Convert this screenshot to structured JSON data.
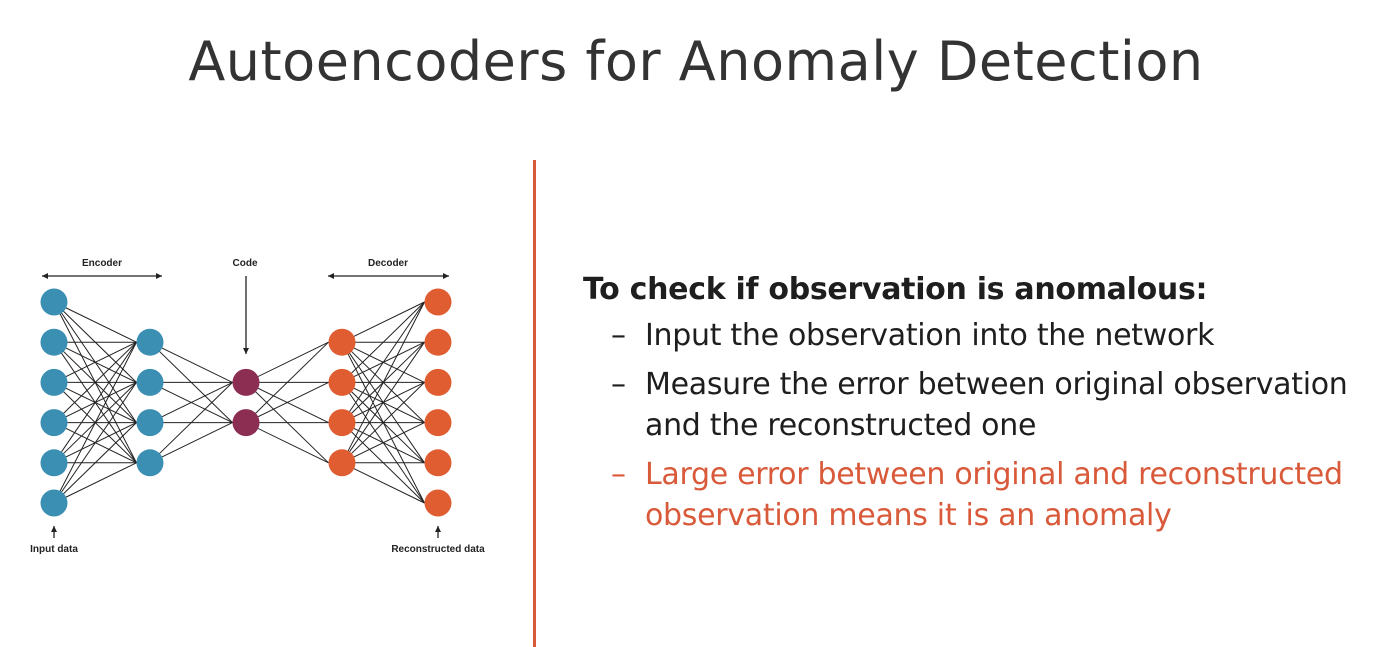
{
  "slide": {
    "title": "Autoencoders for Anomaly Detection"
  },
  "diagram": {
    "labels": {
      "encoder": "Encoder",
      "code": "Code",
      "decoder": "Decoder",
      "input": "Input data",
      "output": "Reconstructed data"
    },
    "colors": {
      "input_nodes": "#3b8fb3",
      "code_nodes": "#8c2d52",
      "output_nodes": "#e05d32",
      "edges": "#222222"
    },
    "layers": [
      6,
      4,
      2,
      4,
      6
    ]
  },
  "bullets": {
    "heading": "To check if observation is anomalous:",
    "items": [
      {
        "text": "Input the observation into the network",
        "highlight": false
      },
      {
        "text": "Measure the error between original observation and the reconstructed one",
        "highlight": false
      },
      {
        "text": "Large error between original and reconstructed observation means it is an anomaly",
        "highlight": true
      }
    ],
    "highlight_color": "#d95a3a",
    "dash": "–"
  },
  "accent_color": "#d95a3a"
}
